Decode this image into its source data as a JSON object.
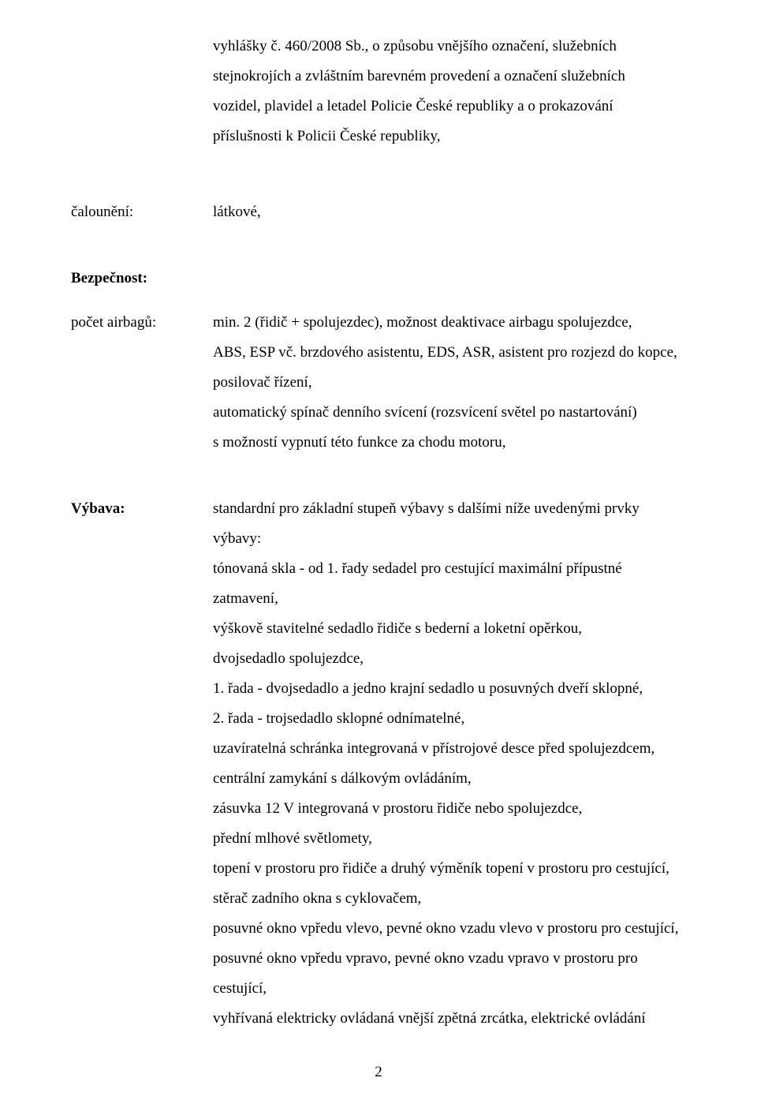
{
  "intro": {
    "p1": "vyhlášky č. 460/2008 Sb., o způsobu vnějšího označení, služebních",
    "p2": "stejnokrojích a zvláštním barevném provedení a označení služebních",
    "p3": "vozidel, plavidel a letadel Policie České republiky a o prokazování",
    "p4": "příslušnosti k Policii České republiky,"
  },
  "calouneni": {
    "label": "čalounění:",
    "value": "látkové,"
  },
  "bezpecnost": {
    "heading": "Bezpečnost:",
    "airbag_label": "počet airbagů:",
    "l1": "min. 2 (řidič + spolujezdec), možnost deaktivace airbagu spolujezdce,",
    "l2": "ABS, ESP vč. brzdového asistentu, EDS, ASR, asistent pro rozjezd do kopce,",
    "l3": "posilovač řízení,",
    "l4": "automatický spínač denního svícení (rozsvícení světel po nastartování)",
    "l5": "s možností vypnutí této funkce za chodu motoru,"
  },
  "vybava": {
    "label": "Výbava:",
    "l1": "standardní pro základní stupeň výbavy s dalšími níže uvedenými prvky",
    "l2": "výbavy:",
    "l3": "tónovaná skla - od 1. řady sedadel pro cestující maximální přípustné",
    "l4": "zatmavení,",
    "l5": "výškově stavitelné sedadlo řidiče s bederní a loketní opěrkou,",
    "l6": "dvojsedadlo spolujezdce,",
    "l7": "1. řada - dvojsedadlo  a jedno krajní sedadlo u posuvných dveří sklopné,",
    "l8": "2. řada - trojsedadlo sklopné odnímatelné,",
    "l9": "uzavíratelná schránka integrovaná v přístrojové desce před spolujezdcem,",
    "l10": "centrální zamykání s dálkovým ovládáním,",
    "l11": "zásuvka 12 V integrovaná v prostoru řidiče nebo spolujezdce,",
    "l12": "přední mlhové světlomety,",
    "l13": "topení v prostoru pro řidiče a druhý výměník topení v prostoru pro cestující,",
    "l14": "stěrač zadního okna s cyklovačem,",
    "l15": "posuvné okno vpředu vlevo, pevné okno vzadu vlevo v prostoru pro cestující,",
    "l16": "posuvné okno vpředu vpravo, pevné okno vzadu vpravo v prostoru pro",
    "l17": "cestující,",
    "l18": "vyhřívaná elektricky ovládaná vnější zpětná zrcátka, elektrické ovládání"
  },
  "page_number": "2"
}
